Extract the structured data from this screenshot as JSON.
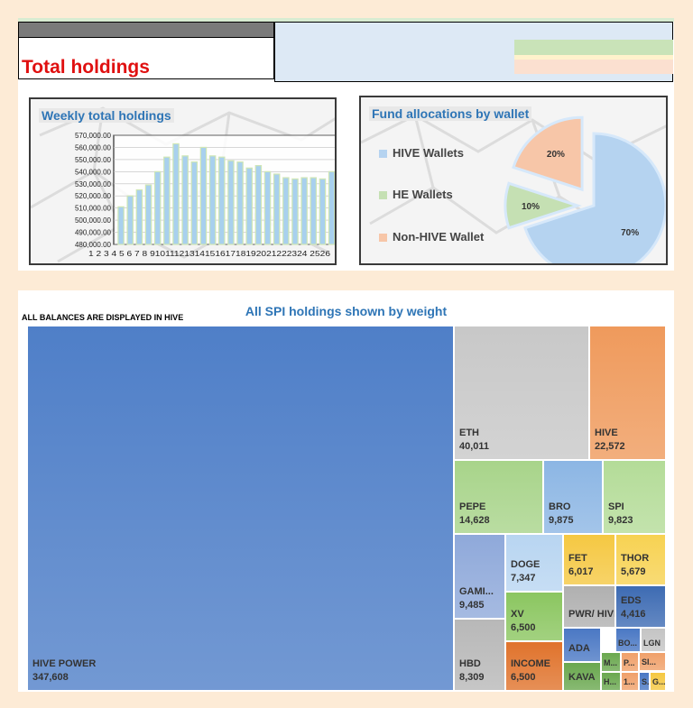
{
  "page_title": "Total holdings",
  "colors": {
    "accent_title": "#e01010",
    "chart_title": "#2e75b6",
    "bar_fill": "#a8d0ee",
    "bar_edge": "#cfe6b5"
  },
  "chart_data": [
    {
      "type": "bar",
      "title": "Weekly total holdings",
      "categories": [
        "1",
        "2",
        "3",
        "4",
        "5",
        "6",
        "7",
        "8",
        "9",
        "10",
        "11",
        "12",
        "13",
        "14",
        "15",
        "16",
        "17",
        "18",
        "19",
        "20",
        "21",
        "22",
        "23",
        "24",
        "25",
        "26"
      ],
      "tick_label_strip": "1 2 3 4 5 6 7 8 9101112131415161718192021222324 2526",
      "values": [
        511000,
        520000,
        525000,
        529000,
        540000,
        552000,
        563000,
        553000,
        548000,
        560000,
        553000,
        552000,
        549000,
        548000,
        543000,
        545000,
        540000,
        538000,
        535000,
        534000,
        535000,
        535000,
        534000,
        540000,
        null,
        null
      ],
      "y_ticks": [
        "570,000.00",
        "560,000.00",
        "550,000.00",
        "540,000.00",
        "530,000.00",
        "520,000.00",
        "510,000.00",
        "500,000.00",
        "490,000.00",
        "480,000.00"
      ],
      "ylim": [
        480000,
        570000
      ],
      "grid": true
    },
    {
      "type": "pie",
      "title": "Fund allocations by wallet",
      "slices": [
        {
          "label": "HIVE Wallets",
          "value": 70,
          "display": "70%",
          "color": "#b5d3f0"
        },
        {
          "label": "HE Wallets",
          "value": 10,
          "display": "10%",
          "color": "#c5e0b3"
        },
        {
          "label": "Non-HIVE Wallet",
          "value": 20,
          "display": "20%",
          "color": "#f7c6a8"
        }
      ],
      "legend": "left"
    },
    {
      "type": "treemap",
      "title": "All SPI holdings shown by weight",
      "note": "ALL BALANCES ARE DISPLAYED IN HIVE",
      "items": [
        {
          "label": "HIVE POWER",
          "value": "347,608",
          "color": "#4f7fc8"
        },
        {
          "label": "ETH",
          "value": "40,011",
          "color": "#c8c8c8"
        },
        {
          "label": "HIVE",
          "value": "22,572",
          "color": "#ef9a5c"
        },
        {
          "label": "PEPE",
          "value": "14,628",
          "color": "#a8d48a"
        },
        {
          "label": "BRO",
          "value": "9,875",
          "color": "#8cb6e4"
        },
        {
          "label": "SPI",
          "value": "9,823",
          "color": "#b4dc98"
        },
        {
          "label": "GAMI...",
          "value": "9,485",
          "color": "#8fa9da"
        },
        {
          "label": "DOGE",
          "value": "7,347",
          "color": "#b8d5f1"
        },
        {
          "label": "FET",
          "value": "6,017",
          "color": "#f5c842"
        },
        {
          "label": "THOR",
          "value": "5,679",
          "color": "#f7d252"
        },
        {
          "label": "XV",
          "value": "6,500",
          "color": "#8bc660"
        },
        {
          "label": "PWR/ HIVE",
          "value": "",
          "color": "#b0b0b0"
        },
        {
          "label": "EDS",
          "value": "4,416",
          "color": "#3d6bb3"
        },
        {
          "label": "HBD",
          "value": "8,309",
          "color": "#b8b8b8"
        },
        {
          "label": "INCOME",
          "value": "6,500",
          "color": "#e0732c"
        },
        {
          "label": "ADA",
          "value": "",
          "color": "#4a78c4"
        },
        {
          "label": "BO...",
          "value": "",
          "color": "#4a78c4"
        },
        {
          "label": "LGN",
          "value": "",
          "color": "#c4c4c4"
        },
        {
          "label": "KAVA",
          "value": "",
          "color": "#6aa84f"
        },
        {
          "label": "M...",
          "value": "",
          "color": "#6aa84f"
        },
        {
          "label": "H...",
          "value": "",
          "color": "#6aa84f"
        },
        {
          "label": "P...",
          "value": "",
          "color": "#f0a06a"
        },
        {
          "label": "1...",
          "value": "",
          "color": "#f0a06a"
        },
        {
          "label": "SI...",
          "value": "",
          "color": "#f0a06a"
        },
        {
          "label": "S...",
          "value": "",
          "color": "#4a78c4"
        },
        {
          "label": "G...",
          "value": "",
          "color": "#f5c842"
        }
      ]
    }
  ]
}
